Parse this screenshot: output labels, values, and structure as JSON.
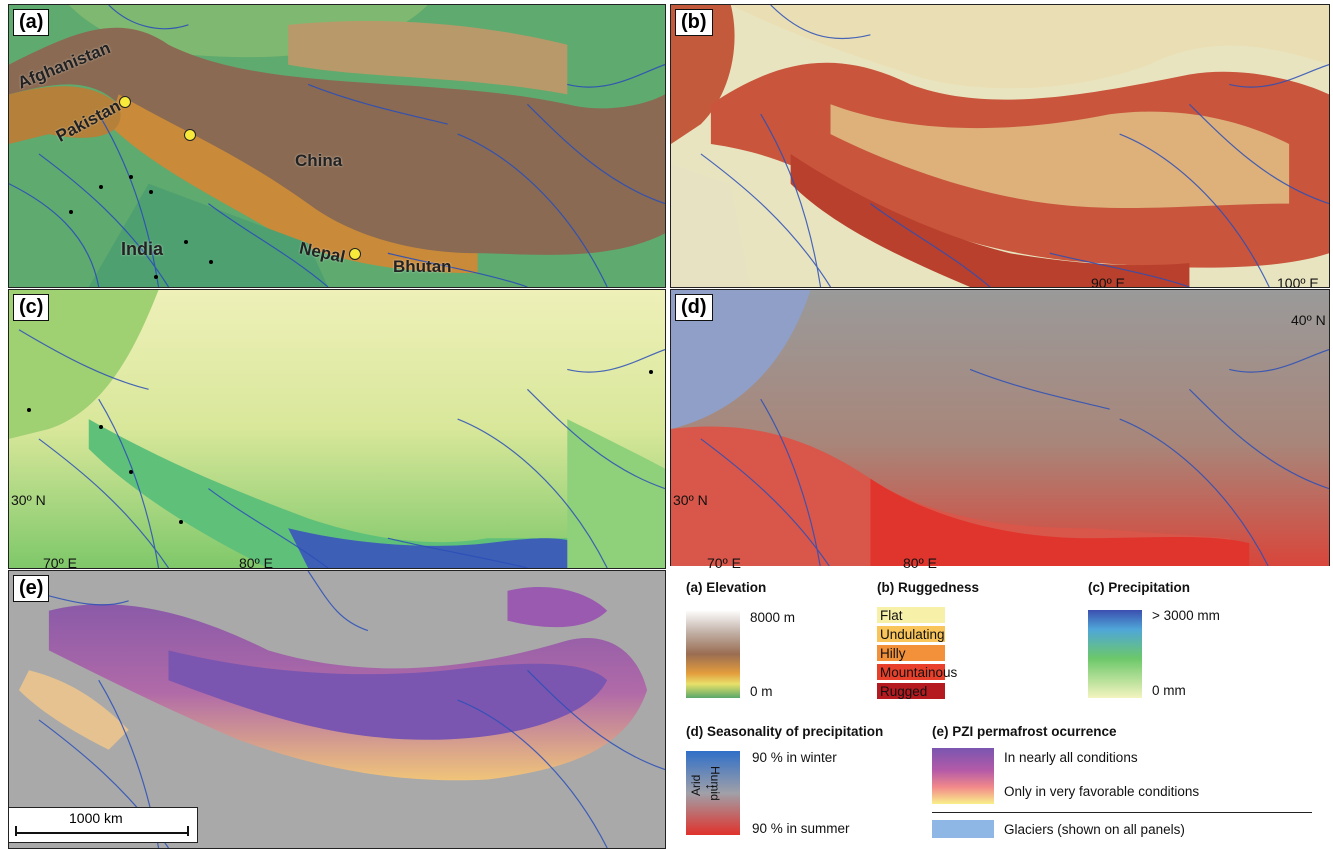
{
  "panels": {
    "a": {
      "label": "(a)"
    },
    "b": {
      "label": "(b)"
    },
    "c": {
      "label": "(c)"
    },
    "d": {
      "label": "(d)"
    },
    "e": {
      "label": "(e)"
    }
  },
  "countries": {
    "afghanistan": "Afghanistan",
    "pakistan": "Pakistan",
    "china": "China",
    "india": "India",
    "nepal": "Nepal",
    "bhutan": "Bhutan"
  },
  "coords": {
    "lon90": "90º E",
    "lon100": "100º E",
    "lat40": "40º N",
    "lat30": "30º N",
    "lon70": "70º E",
    "lon80": "80º E"
  },
  "legend": {
    "elevation": {
      "title": "(a) Elevation",
      "max": "8000 m",
      "min": "0 m"
    },
    "ruggedness": {
      "title": "(b) Ruggedness",
      "classes": [
        {
          "label": "Flat",
          "color": "#f7f0a8"
        },
        {
          "label": "Undulating",
          "color": "#f9c55a"
        },
        {
          "label": "Hilly",
          "color": "#f3903a"
        },
        {
          "label": "Mountainous",
          "color": "#e8402a"
        },
        {
          "label": "Rugged",
          "color": "#b51a20"
        }
      ]
    },
    "precipitation": {
      "title": "(c) Precipitation",
      "max": "> 3000 mm",
      "min": "0 mm"
    },
    "seasonality": {
      "title": "(d) Seasonality of precipitation",
      "winter": "90 % in winter",
      "summer": "90 % in summer",
      "arid": "Arid",
      "humid": "Humid"
    },
    "permafrost": {
      "title": "(e) PZI permafrost ocurrence",
      "high": "In nearly all conditions",
      "low": "Only in very favorable conditions"
    },
    "glaciers": {
      "label": "Glaciers (shown on all panels)",
      "color": "#8fb7e6"
    }
  },
  "scalebar": {
    "label": "1000 km"
  }
}
